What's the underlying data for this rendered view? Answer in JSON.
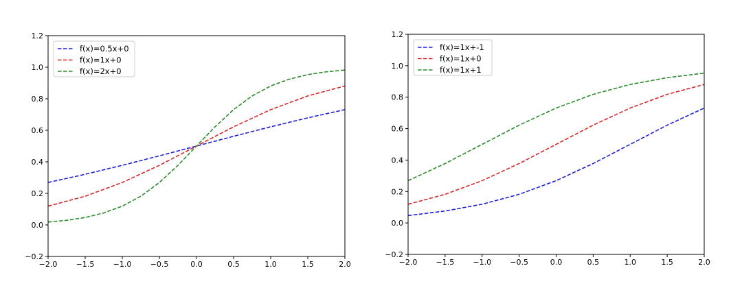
{
  "chart_data": [
    {
      "type": "line",
      "title": "",
      "xlabel": "",
      "ylabel": "",
      "xlim": [
        -2.0,
        2.0
      ],
      "ylim": [
        -0.2,
        1.2
      ],
      "xticks": [
        -2.0,
        -1.5,
        -1.0,
        -0.5,
        0.0,
        0.5,
        1.0,
        1.5,
        2.0
      ],
      "xtick_labels": [
        "−2.0",
        "−1.5",
        "−1.0",
        "−0.5",
        "0.0",
        "0.5",
        "1.0",
        "1.5",
        "2.0"
      ],
      "yticks": [
        -0.2,
        0.0,
        0.2,
        0.4,
        0.6,
        0.8,
        1.0,
        1.2
      ],
      "ytick_labels": [
        "−0.2",
        "0.0",
        "0.2",
        "0.4",
        "0.6",
        "0.8",
        "1.0",
        "1.2"
      ],
      "grid": false,
      "legend_position": "top-left",
      "line_style": "dashed",
      "series": [
        {
          "name": "f(x)=0.5x+0",
          "color": "#1f1fd6",
          "x": [
            -2.0,
            -1.5,
            -1.0,
            -0.5,
            0.0,
            0.5,
            1.0,
            1.5,
            2.0
          ],
          "y": [
            0.269,
            0.321,
            0.378,
            0.438,
            0.5,
            0.562,
            0.622,
            0.679,
            0.731
          ]
        },
        {
          "name": "f(x)=1x+0",
          "color": "#d62728",
          "x": [
            -2.0,
            -1.5,
            -1.0,
            -0.5,
            0.0,
            0.5,
            1.0,
            1.5,
            2.0
          ],
          "y": [
            0.119,
            0.182,
            0.269,
            0.378,
            0.5,
            0.622,
            0.731,
            0.818,
            0.881
          ]
        },
        {
          "name": "f(x)=2x+0",
          "color": "#2a8a2a",
          "x": [
            -2.0,
            -1.75,
            -1.5,
            -1.25,
            -1.0,
            -0.75,
            -0.5,
            -0.25,
            0.0,
            0.25,
            0.5,
            0.75,
            1.0,
            1.25,
            1.5,
            1.75,
            2.0
          ],
          "y": [
            0.018,
            0.029,
            0.047,
            0.076,
            0.119,
            0.182,
            0.269,
            0.378,
            0.5,
            0.622,
            0.731,
            0.818,
            0.881,
            0.924,
            0.953,
            0.971,
            0.982
          ]
        }
      ]
    },
    {
      "type": "line",
      "title": "",
      "xlabel": "",
      "ylabel": "",
      "xlim": [
        -2.0,
        2.0
      ],
      "ylim": [
        -0.2,
        1.2
      ],
      "xticks": [
        -2.0,
        -1.5,
        -1.0,
        -0.5,
        0.0,
        0.5,
        1.0,
        1.5,
        2.0
      ],
      "xtick_labels": [
        "−2.0",
        "−1.5",
        "−1.0",
        "−0.5",
        "0.0",
        "0.5",
        "1.0",
        "1.5",
        "2.0"
      ],
      "yticks": [
        -0.2,
        0.0,
        0.2,
        0.4,
        0.6,
        0.8,
        1.0,
        1.2
      ],
      "ytick_labels": [
        "−0.2",
        "0.0",
        "0.2",
        "0.4",
        "0.6",
        "0.8",
        "1.0",
        "1.2"
      ],
      "grid": false,
      "legend_position": "top-left",
      "line_style": "dashed",
      "series": [
        {
          "name": "f(x)=1x+-1",
          "color": "#1f1fd6",
          "x": [
            -2.0,
            -1.5,
            -1.0,
            -0.5,
            0.0,
            0.5,
            1.0,
            1.5,
            2.0
          ],
          "y": [
            0.047,
            0.076,
            0.119,
            0.182,
            0.269,
            0.378,
            0.5,
            0.622,
            0.731
          ]
        },
        {
          "name": "f(x)=1x+0",
          "color": "#d62728",
          "x": [
            -2.0,
            -1.5,
            -1.0,
            -0.5,
            0.0,
            0.5,
            1.0,
            1.5,
            2.0
          ],
          "y": [
            0.119,
            0.182,
            0.269,
            0.378,
            0.5,
            0.622,
            0.731,
            0.818,
            0.881
          ]
        },
        {
          "name": "f(x)=1x+1",
          "color": "#2a8a2a",
          "x": [
            -2.0,
            -1.5,
            -1.0,
            -0.5,
            0.0,
            0.5,
            1.0,
            1.5,
            2.0
          ],
          "y": [
            0.269,
            0.378,
            0.5,
            0.622,
            0.731,
            0.818,
            0.881,
            0.924,
            0.953
          ]
        }
      ]
    }
  ]
}
